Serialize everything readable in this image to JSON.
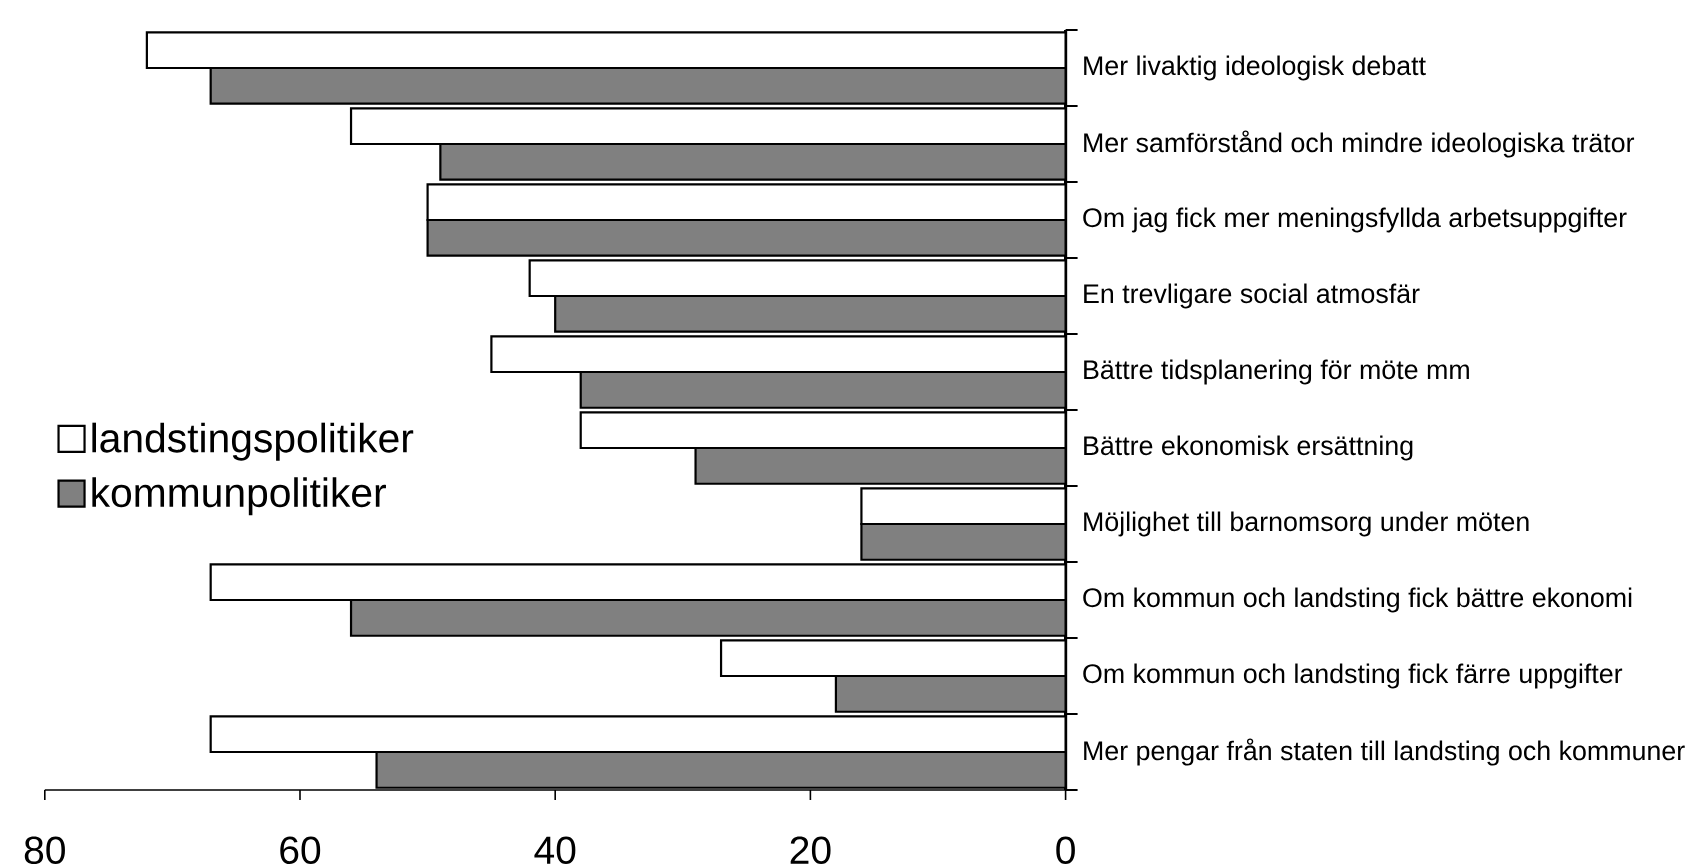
{
  "chart_data": {
    "type": "bar",
    "orientation": "horizontal",
    "categories": [
      "Mer livaktig ideologisk debatt",
      "Mer samförstånd och mindre ideologiska trätor",
      "Om jag fick mer meningsfyllda arbetsuppgifter",
      "En trevligare social atmosfär",
      "Bättre tidsplanering för möte mm",
      "Bättre ekonomisk ersättning",
      "Möjlighet till barnomsorg under möten",
      "Om kommun och landsting fick bättre ekonomi",
      "Om kommun och landsting fick färre uppgifter",
      "Mer pengar från staten till landsting och kommuner"
    ],
    "series": [
      {
        "name": "landstingspolitiker",
        "color": "#ffffff",
        "values": [
          72,
          56,
          50,
          42,
          45,
          38,
          16,
          67,
          27,
          67
        ]
      },
      {
        "name": "kommunpolitiker",
        "color": "#808080",
        "values": [
          67,
          49,
          50,
          40,
          38,
          29,
          16,
          56,
          18,
          54
        ]
      }
    ],
    "xlim": [
      80,
      0
    ],
    "xticks": [
      0,
      20,
      40,
      60,
      80
    ],
    "legend": "left"
  }
}
